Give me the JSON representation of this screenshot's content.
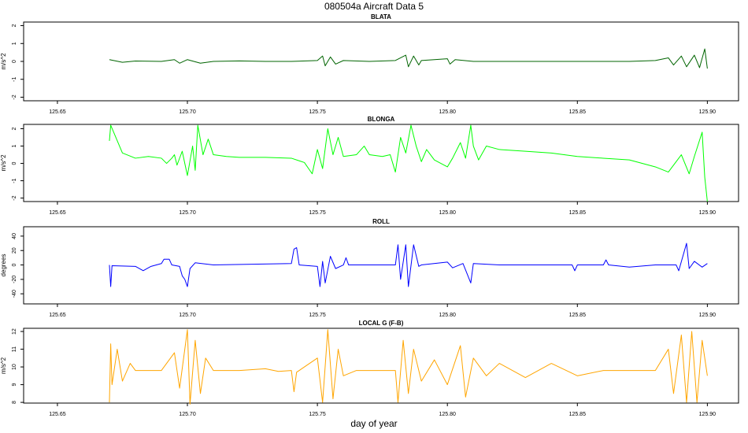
{
  "title": "080504a   Aircraft Data 5",
  "x_label": "day of year",
  "chart_data": [
    {
      "type": "line",
      "title": "BLATA",
      "y_label": "m/s^2",
      "color": "#006400",
      "xlim": [
        125.637,
        125.912
      ],
      "xticks": [
        125.65,
        {
          "value": 125.7,
          "label": "125.70"
        },
        125.75,
        {
          "value": 125.8,
          "label": "125.80"
        },
        125.85,
        {
          "value": 125.9,
          "label": "125.90"
        }
      ],
      "ylim": [
        -2.2,
        2.2
      ],
      "yticks": [
        -2,
        -1,
        0,
        1,
        2
      ],
      "x": [
        125.67,
        125.675,
        125.68,
        125.69,
        125.695,
        125.697,
        125.7,
        125.705,
        125.71,
        125.72,
        125.73,
        125.74,
        125.75,
        125.752,
        125.753,
        125.755,
        125.757,
        125.76,
        125.77,
        125.78,
        125.784,
        125.785,
        125.787,
        125.789,
        125.79,
        125.8,
        125.801,
        125.803,
        125.81,
        125.83,
        125.85,
        125.87,
        125.88,
        125.885,
        125.887,
        125.89,
        125.892,
        125.895,
        125.897,
        125.899,
        125.9
      ],
      "values": [
        0.1,
        -0.05,
        0.02,
        0,
        0.1,
        -0.1,
        0.1,
        -0.1,
        0,
        0.03,
        0,
        0,
        0.05,
        0.3,
        -0.25,
        0.25,
        -0.15,
        0.05,
        0,
        0.05,
        0.35,
        -0.3,
        0.3,
        -0.2,
        0.05,
        0.15,
        -0.15,
        0.1,
        0,
        0,
        0,
        0,
        0.05,
        0.2,
        -0.2,
        0.3,
        -0.3,
        0.35,
        -0.35,
        0.7,
        -0.4
      ]
    },
    {
      "type": "line",
      "title": "BLONGA",
      "y_label": "m/s^2",
      "color": "#00ff00",
      "xlim": [
        125.637,
        125.912
      ],
      "xticks": [
        125.65,
        {
          "value": 125.7,
          "label": "125.70"
        },
        125.75,
        {
          "value": 125.8,
          "label": "125.80"
        },
        125.85,
        {
          "value": 125.9,
          "label": "125.90"
        }
      ],
      "ylim": [
        -2.2,
        2.25
      ],
      "yticks": [
        -2,
        -1,
        0,
        1,
        2
      ],
      "x": [
        125.67,
        125.6705,
        125.675,
        125.68,
        125.685,
        125.69,
        125.692,
        125.694,
        125.695,
        125.696,
        125.698,
        125.7,
        125.702,
        125.703,
        125.704,
        125.706,
        125.708,
        125.71,
        125.715,
        125.72,
        125.73,
        125.74,
        125.745,
        125.748,
        125.75,
        125.752,
        125.754,
        125.756,
        125.758,
        125.76,
        125.765,
        125.768,
        125.77,
        125.775,
        125.778,
        125.78,
        125.782,
        125.784,
        125.786,
        125.788,
        125.79,
        125.792,
        125.795,
        125.8,
        125.802,
        125.805,
        125.807,
        125.809,
        125.81,
        125.812,
        125.815,
        125.82,
        125.83,
        125.84,
        125.85,
        125.86,
        125.87,
        125.88,
        125.885,
        125.89,
        125.893,
        125.895,
        125.898,
        125.899,
        125.9
      ],
      "values": [
        1.3,
        2.2,
        0.6,
        0.3,
        0.4,
        0.3,
        0,
        0.3,
        0.5,
        -0.1,
        0.7,
        -0.7,
        1.0,
        -0.4,
        2.2,
        0.5,
        1.4,
        0.5,
        0.4,
        0.35,
        0.35,
        0.3,
        0.05,
        -0.6,
        0.8,
        -0.3,
        2.0,
        0.5,
        1.5,
        0.4,
        0.5,
        1.0,
        0.5,
        0.4,
        0.5,
        -0.5,
        1.5,
        0.6,
        2.2,
        1.0,
        0.1,
        0.8,
        0.2,
        -0.2,
        0.3,
        1.2,
        0.3,
        2.2,
        1.0,
        0.2,
        1.0,
        0.8,
        0.7,
        0.6,
        0.4,
        0.3,
        0.2,
        -0.2,
        -0.5,
        0.5,
        -0.6,
        0.4,
        1.8,
        -0.8,
        -2.2
      ]
    },
    {
      "type": "line",
      "title": "ROLL",
      "y_label": "degrees",
      "color": "#0000ff",
      "xlim": [
        125.637,
        125.912
      ],
      "xticks": [
        125.65,
        {
          "value": 125.7,
          "label": "125.70"
        },
        125.75,
        {
          "value": 125.8,
          "label": "125.80"
        },
        125.85,
        {
          "value": 125.9,
          "label": "125.90"
        }
      ],
      "ylim": [
        -54,
        53
      ],
      "yticks": [
        -40,
        -20,
        0,
        20,
        40
      ],
      "x": [
        125.67,
        125.6705,
        125.671,
        125.68,
        125.683,
        125.686,
        125.69,
        125.691,
        125.693,
        125.694,
        125.697,
        125.698,
        125.699,
        125.7,
        125.701,
        125.703,
        125.71,
        125.74,
        125.741,
        125.742,
        125.743,
        125.75,
        125.751,
        125.752,
        125.753,
        125.755,
        125.757,
        125.76,
        125.761,
        125.762,
        125.78,
        125.781,
        125.782,
        125.784,
        125.785,
        125.787,
        125.789,
        125.79,
        125.8,
        125.802,
        125.806,
        125.809,
        125.81,
        125.82,
        125.848,
        125.849,
        125.85,
        125.86,
        125.861,
        125.862,
        125.87,
        125.88,
        125.888,
        125.889,
        125.892,
        125.893,
        125.895,
        125.898,
        125.9
      ],
      "values": [
        0,
        -30,
        -1,
        -2,
        -8,
        -2,
        2,
        8,
        8,
        0,
        -2,
        -15,
        -20,
        -30,
        -5,
        3,
        0,
        2,
        22,
        24,
        0,
        -2,
        -30,
        5,
        -25,
        12,
        -5,
        0,
        10,
        0,
        0,
        28,
        -20,
        28,
        -30,
        28,
        -2,
        0,
        4,
        -4,
        2,
        -25,
        2,
        0,
        0,
        -8,
        0,
        0,
        7,
        0,
        -3,
        0,
        0,
        -8,
        30,
        -5,
        5,
        -3,
        2
      ]
    },
    {
      "type": "line",
      "title": "LOCAL G (F-B)",
      "y_label": "m/s^2",
      "color": "#ffa500",
      "xlim": [
        125.637,
        125.912
      ],
      "xticks": [
        125.65,
        {
          "value": 125.7,
          "label": "125.70"
        },
        125.75,
        {
          "value": 125.8,
          "label": "125.80"
        },
        125.85,
        {
          "value": 125.9,
          "label": "125.90"
        }
      ],
      "ylim": [
        7.96,
        12.18
      ],
      "yticks": [
        8,
        9,
        10,
        11,
        12
      ],
      "x": [
        125.67,
        125.6705,
        125.671,
        125.673,
        125.675,
        125.678,
        125.68,
        125.69,
        125.695,
        125.697,
        125.7,
        125.701,
        125.703,
        125.705,
        125.707,
        125.71,
        125.72,
        125.73,
        125.735,
        125.74,
        125.741,
        125.742,
        125.75,
        125.752,
        125.754,
        125.756,
        125.758,
        125.76,
        125.765,
        125.77,
        125.78,
        125.781,
        125.783,
        125.785,
        125.787,
        125.79,
        125.795,
        125.8,
        125.805,
        125.807,
        125.81,
        125.815,
        125.82,
        125.83,
        125.84,
        125.85,
        125.86,
        125.87,
        125.88,
        125.885,
        125.887,
        125.89,
        125.892,
        125.894,
        125.896,
        125.898,
        125.9
      ],
      "values": [
        8,
        11.3,
        9,
        11,
        9.2,
        10.2,
        9.8,
        9.8,
        10.8,
        8.8,
        12.1,
        7.9,
        11.5,
        8.5,
        10.5,
        9.8,
        9.8,
        9.9,
        9.75,
        9.8,
        8.6,
        9.7,
        10.5,
        8,
        12.1,
        8.2,
        11,
        9.5,
        9.8,
        9.8,
        9.8,
        8,
        11.5,
        8.5,
        11,
        9.2,
        10.4,
        9,
        11.2,
        8.3,
        10.5,
        9.5,
        10.2,
        9.4,
        10.2,
        9.5,
        9.8,
        9.8,
        9.8,
        11,
        8.5,
        11.8,
        8,
        12,
        8,
        11.5,
        9.5
      ]
    }
  ]
}
